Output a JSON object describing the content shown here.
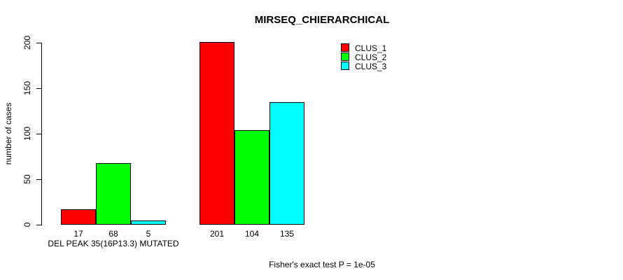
{
  "chart_data": {
    "type": "bar",
    "title": "MIRSEQ_CHIERARCHICAL",
    "ylabel": "number of cases",
    "xlabel": "DEL PEAK 35(16P13.3) MUTATED",
    "footnote": "Fisher's exact test P = 1e-05",
    "yticks": [
      0,
      50,
      100,
      150,
      200
    ],
    "ylim": [
      0,
      210
    ],
    "grid": false,
    "legend_position": "top-right",
    "bar_borders": true,
    "categories": [
      "DEL PEAK 35(16P13.3) MUTATED",
      ""
    ],
    "series": [
      {
        "name": "CLUS_1",
        "color": "#ff0000",
        "values": [
          17,
          201
        ]
      },
      {
        "name": "CLUS_2",
        "color": "#00ff00",
        "values": [
          68,
          104
        ]
      },
      {
        "name": "CLUS_3",
        "color": "#00ffff",
        "values": [
          5,
          135
        ]
      }
    ]
  }
}
